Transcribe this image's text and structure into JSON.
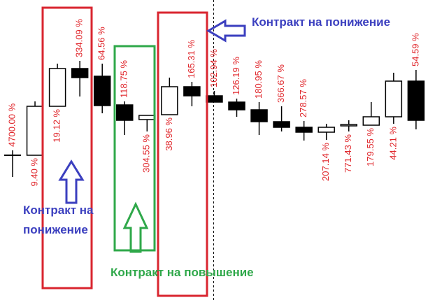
{
  "chart_data": {
    "type": "candlestick",
    "title": "",
    "xlabel": "",
    "ylabel": "",
    "axes_shown": false,
    "grid": false,
    "price_units": "relative (no axis printed)",
    "ylim": [
      0,
      430
    ],
    "candles": [
      {
        "o": 208,
        "h": 215,
        "l": 177,
        "c": 208,
        "label": "4700.00 %",
        "label_position": "above"
      },
      {
        "o": 208,
        "h": 285,
        "l": 208,
        "c": 278,
        "label": "9.40 %",
        "label_position": "below"
      },
      {
        "o": 278,
        "h": 339,
        "l": 278,
        "c": 332,
        "label": "19.12 %",
        "label_position": "below"
      },
      {
        "o": 332,
        "h": 343,
        "l": 292,
        "c": 319,
        "label": "334.09 %",
        "label_position": "above"
      },
      {
        "o": 321,
        "h": 339,
        "l": 268,
        "c": 279,
        "label": "64.56 %",
        "label_position": "above"
      },
      {
        "o": 280,
        "h": 285,
        "l": 237,
        "c": 258,
        "label": "118.75 %",
        "label_position": "above"
      },
      {
        "o": 259,
        "h": 265,
        "l": 242,
        "c": 265,
        "label": "304.55 %",
        "label_position": "below"
      },
      {
        "o": 266,
        "h": 319,
        "l": 266,
        "c": 306,
        "label": "38.96 %",
        "label_position": "below"
      },
      {
        "o": 306,
        "h": 313,
        "l": 278,
        "c": 293,
        "label": "165.31 %",
        "label_position": "above"
      },
      {
        "o": 293,
        "h": 300,
        "l": 284,
        "c": 284,
        "label": "102.94 %",
        "label_position": "above"
      },
      {
        "o": 284,
        "h": 289,
        "l": 263,
        "c": 273,
        "label": "126.19 %",
        "label_position": "above"
      },
      {
        "o": 273,
        "h": 284,
        "l": 237,
        "c": 256,
        "label": "180.95 %",
        "label_position": "above"
      },
      {
        "o": 256,
        "h": 278,
        "l": 242,
        "c": 248,
        "label": "366.67 %",
        "label_position": "above"
      },
      {
        "o": 248,
        "h": 257,
        "l": 229,
        "c": 241,
        "label": "278.57 %",
        "label_position": "above"
      },
      {
        "o": 241,
        "h": 253,
        "l": 230,
        "c": 248,
        "label": "207.14 %",
        "label_position": "below"
      },
      {
        "o": 250,
        "h": 258,
        "l": 242,
        "c": 252,
        "label": "771.43 %",
        "label_position": "below"
      },
      {
        "o": 251,
        "h": 284,
        "l": 251,
        "c": 263,
        "label": "179.55 %",
        "label_position": "below"
      },
      {
        "o": 263,
        "h": 326,
        "l": 253,
        "c": 314,
        "label": "44.21 %",
        "label_position": "below"
      },
      {
        "o": 314,
        "h": 330,
        "l": 245,
        "c": 258,
        "label": "54.59 %",
        "label_position": "above"
      }
    ],
    "bull_color": "#ffffff",
    "bear_color": "#000000",
    "label_color": "#e0262b"
  },
  "annotations": {
    "top_right_text": "Контракт на понижение",
    "left_text_line1": "Контракт на",
    "left_text_line2": "понижение",
    "bottom_text": "Контракт на повышение",
    "blue": "#3b3fbf",
    "green": "#2fa84a",
    "red": "#d9252f"
  }
}
